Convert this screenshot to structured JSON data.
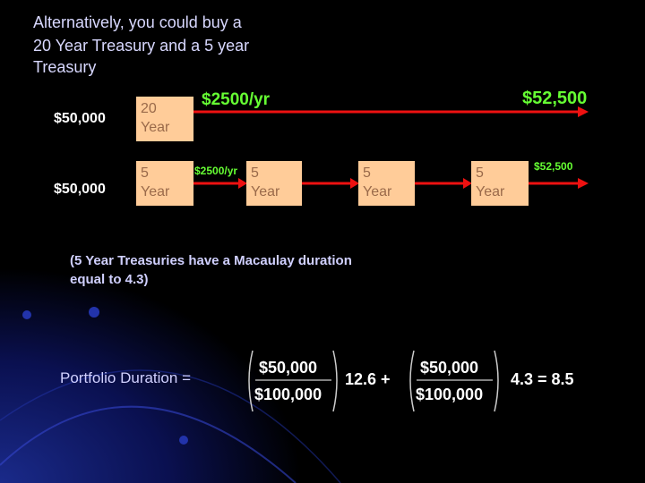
{
  "title_lines": [
    "Alternatively,  you could buy a",
    "20 Year Treasury and a 5 year",
    "Treasury"
  ],
  "row1": {
    "amount": "$50,000",
    "box": [
      "20",
      "Year"
    ],
    "coupon": "$2500/yr",
    "final": "$52,500"
  },
  "row2": {
    "amount": "$50,000",
    "boxes": [
      [
        "5",
        "Year"
      ],
      [
        "5",
        "Year"
      ],
      [
        "5",
        "Year"
      ],
      [
        "5",
        "Year"
      ]
    ],
    "coupon": "$2500/yr",
    "final": "$52,500"
  },
  "note_lines": [
    "(5 Year Treasuries have a Macaulay duration",
    "equal to 4.3)"
  ],
  "formula": {
    "label": "Portfolio Duration =",
    "term1": {
      "numerator": "$50,000",
      "denominator": "$100,000"
    },
    "mid": "12.6 +",
    "term2": {
      "numerator": "$50,000",
      "denominator": "$100,000"
    },
    "end": "4.3 = 8.5"
  }
}
